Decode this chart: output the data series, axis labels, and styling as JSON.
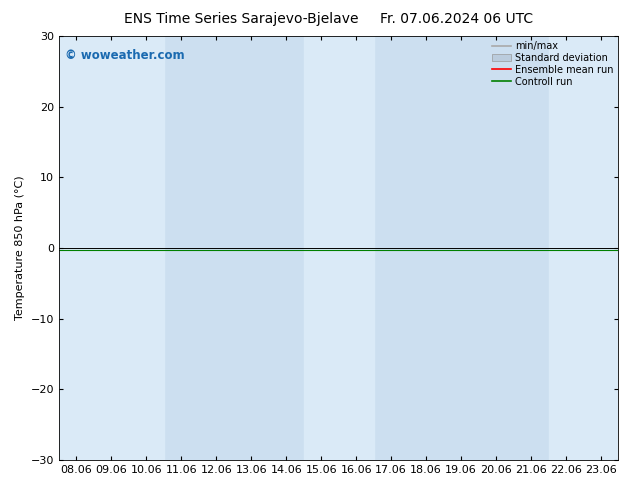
{
  "title_left": "ENS Time Series Sarajevo-Bjelave",
  "title_right": "Fr. 07.06.2024 06 UTC",
  "ylabel": "Temperature 850 hPa (°C)",
  "ylim": [
    -30,
    30
  ],
  "yticks": [
    -30,
    -20,
    -10,
    0,
    10,
    20,
    30
  ],
  "xtick_labels": [
    "08.06",
    "09.06",
    "10.06",
    "11.06",
    "12.06",
    "13.06",
    "14.06",
    "15.06",
    "16.06",
    "17.06",
    "18.06",
    "19.06",
    "20.06",
    "21.06",
    "22.06",
    "23.06"
  ],
  "x_values": [
    0,
    1,
    2,
    3,
    4,
    5,
    6,
    7,
    8,
    9,
    10,
    11,
    12,
    13,
    14,
    15
  ],
  "shaded_bands": [
    0,
    1,
    2,
    7,
    8,
    14,
    15
  ],
  "base_bg_color": "#ccdff0",
  "shade_color": "#daeaf7",
  "background_color": "#ffffff",
  "watermark": "© woweather.com",
  "watermark_color": "#1a6ab0",
  "hline_y": 0,
  "hline_color": "#000000",
  "green_line_color": "#008000",
  "legend_items": [
    {
      "label": "min/max",
      "color": "#aaaaaa",
      "style": "line"
    },
    {
      "label": "Standard deviation",
      "color": "#bbccdd",
      "style": "box"
    },
    {
      "label": "Ensemble mean run",
      "color": "#ff0000",
      "style": "line"
    },
    {
      "label": "Controll run",
      "color": "#008000",
      "style": "line"
    }
  ],
  "title_fontsize": 10,
  "axis_fontsize": 8,
  "tick_fontsize": 8,
  "fig_width": 6.34,
  "fig_height": 4.9,
  "dpi": 100
}
